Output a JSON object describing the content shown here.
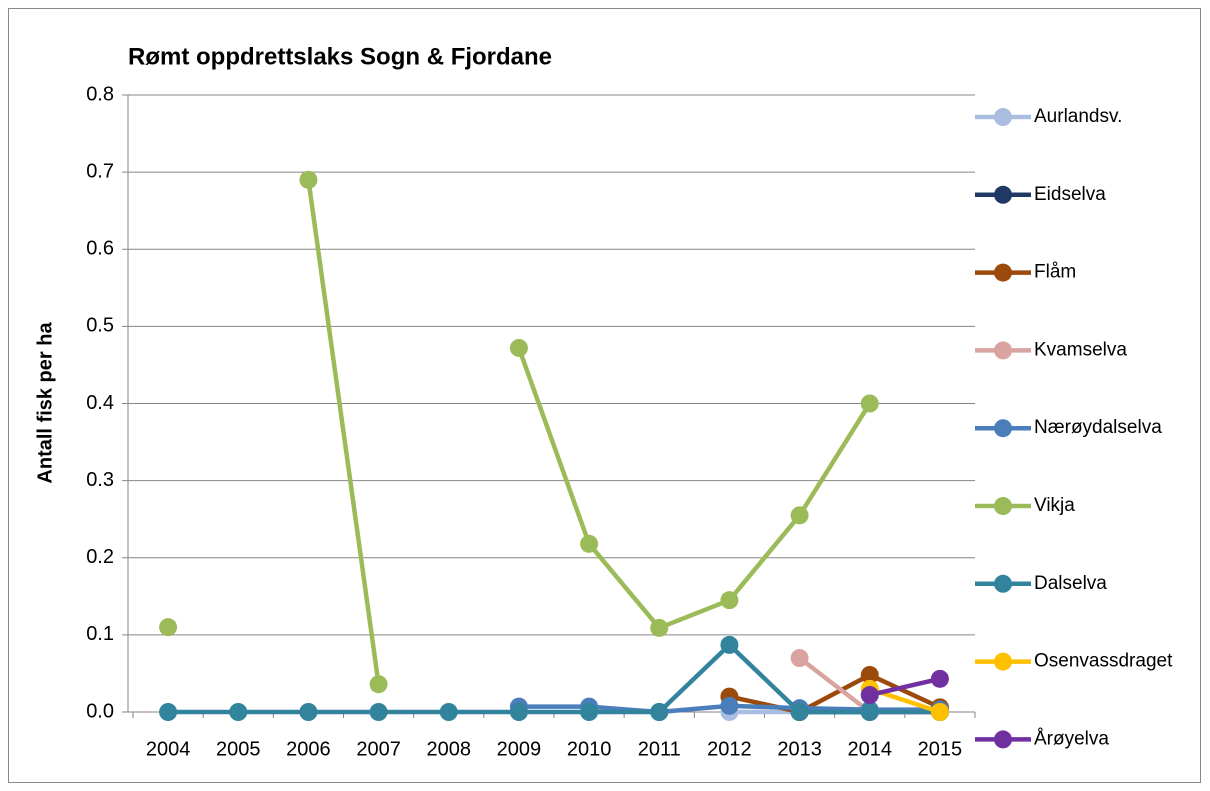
{
  "chart_data": {
    "type": "line",
    "title": "Rømt oppdrettslaks Sogn & Fjordane",
    "y_label": "Antall fisk per ha",
    "categories": [
      "2004",
      "2005",
      "2006",
      "2007",
      "2008",
      "2009",
      "2010",
      "2011",
      "2012",
      "2013",
      "2014",
      "2015"
    ],
    "ylim": [
      0,
      0.8
    ],
    "yticks": [
      {
        "value": 0,
        "label": "0.0"
      },
      0.1,
      0.2,
      0.3,
      0.4,
      0.5,
      0.6,
      0.7,
      0.8
    ],
    "grid": true,
    "legend": "right",
    "series": [
      {
        "name": "Aurlandsv.",
        "color": "#a9bde0",
        "values": [
          null,
          null,
          null,
          null,
          null,
          null,
          null,
          null,
          0,
          0,
          0,
          0
        ]
      },
      {
        "name": "Eidselva",
        "color": "#1f3864",
        "values": [
          null,
          null,
          null,
          null,
          null,
          null,
          null,
          null,
          null,
          0,
          0,
          0
        ]
      },
      {
        "name": "Flåm",
        "color": "#9c4a0c",
        "values": [
          null,
          null,
          null,
          null,
          null,
          null,
          null,
          null,
          0.02,
          0,
          0.048,
          0.006
        ]
      },
      {
        "name": "Kvamselva",
        "color": "#d9a3a0",
        "values": [
          null,
          null,
          null,
          null,
          null,
          null,
          null,
          null,
          null,
          0.07,
          0,
          0
        ]
      },
      {
        "name": "Nærøydalselva",
        "color": "#4a7ebb",
        "values": [
          null,
          null,
          null,
          null,
          null,
          0.007,
          0.007,
          0,
          0.008,
          0.005,
          0.003,
          0.003
        ]
      },
      {
        "name": "Vikja",
        "color": "#9bbb59",
        "values": [
          0.11,
          null,
          0.69,
          0.036,
          null,
          0.472,
          0.218,
          0.109,
          0.145,
          0.255,
          0.4,
          null
        ]
      },
      {
        "name": "Dalselva",
        "color": "#31849b",
        "values": [
          0,
          0,
          0,
          0,
          0,
          0,
          0,
          0,
          0.087,
          0,
          0,
          0
        ]
      },
      {
        "name": "Osenvassdraget",
        "color": "#ffc000",
        "values": [
          null,
          null,
          null,
          null,
          null,
          null,
          null,
          null,
          null,
          null,
          0.03,
          0
        ]
      },
      {
        "name": "Årøyelva",
        "color": "#7030a0",
        "values": [
          null,
          null,
          null,
          null,
          null,
          null,
          null,
          null,
          null,
          null,
          0.022,
          0.043
        ]
      }
    ]
  }
}
